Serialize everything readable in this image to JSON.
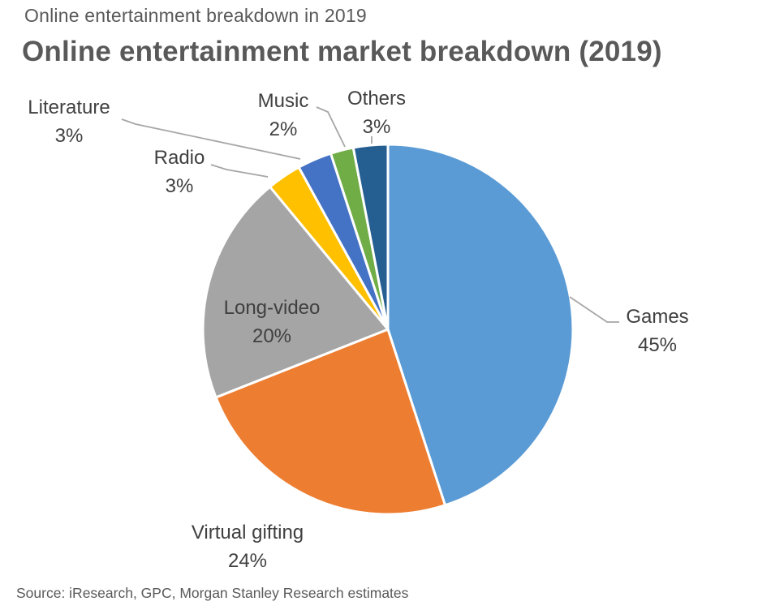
{
  "header": {
    "kicker": "Online entertainment breakdown in 2019",
    "title": "Online entertainment market breakdown (2019)"
  },
  "source": "Source: iResearch, GPC, Morgan Stanley Research estimates",
  "chart_data": {
    "type": "pie",
    "title": "Online entertainment market breakdown (2019)",
    "unit": "%",
    "start_angle_deg": 0,
    "direction": "clockwise",
    "legend": "none",
    "label_style": "outside-with-leader-lines",
    "slices": [
      {
        "label": "Games",
        "value": 45,
        "value_label": "45%",
        "color": "#5B9BD5"
      },
      {
        "label": "Virtual gifting",
        "value": 24,
        "value_label": "24%",
        "color": "#ED7D31"
      },
      {
        "label": "Long-video",
        "value": 20,
        "value_label": "20%",
        "color": "#A5A5A5"
      },
      {
        "label": "Radio",
        "value": 3,
        "value_label": "3%",
        "color": "#FFC000"
      },
      {
        "label": "Literature",
        "value": 3,
        "value_label": "3%",
        "color": "#4472C4"
      },
      {
        "label": "Music",
        "value": 2,
        "value_label": "2%",
        "color": "#70AD47"
      },
      {
        "label": "Others",
        "value": 3,
        "value_label": "3%",
        "color": "#255E91"
      }
    ],
    "leader_line_color": "#A6A6A6",
    "slice_border_color": "#FFFFFF"
  }
}
